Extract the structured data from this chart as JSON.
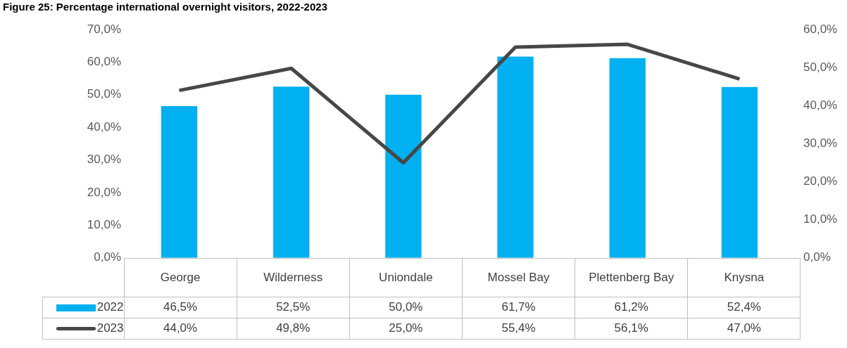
{
  "chart_data": {
    "type": "bar",
    "title": "Figure 25: Percentage international overnight visitors, 2022-2023",
    "categories": [
      "George",
      "Wilderness",
      "Uniondale",
      "Mossel Bay",
      "Plettenberg Bay",
      "Knysna"
    ],
    "series": [
      {
        "name": "2022",
        "color": "#00b0f0",
        "values": [
          46.5,
          52.5,
          50.0,
          61.7,
          61.2,
          52.4
        ],
        "value_labels": [
          "46,5%",
          "52,5%",
          "50,0%",
          "61,7%",
          "61,2%",
          "52,4%"
        ]
      },
      {
        "name": "2023",
        "type": "line",
        "axis": "y2",
        "color": "#474747",
        "values": [
          44.0,
          49.8,
          25.0,
          55.4,
          56.1,
          47.0
        ],
        "value_labels": [
          "44,0%",
          "49,8%",
          "25,0%",
          "55,4%",
          "56,1%",
          "47,0%"
        ]
      }
    ],
    "ylim": [
      0,
      70
    ],
    "yticks": [
      {
        "value": 0,
        "label": "0,0%"
      },
      {
        "value": 10,
        "label": "10,0%"
      },
      {
        "value": 20,
        "label": "20,0%"
      },
      {
        "value": 30,
        "label": "30,0%"
      },
      {
        "value": 40,
        "label": "40,0%"
      },
      {
        "value": 50,
        "label": "50,0%"
      },
      {
        "value": 60,
        "label": "60,0%"
      },
      {
        "value": 70,
        "label": "70,0%"
      }
    ],
    "y2lim": [
      0,
      60
    ],
    "y2ticks": [
      {
        "value": 0,
        "label": "0,0%"
      },
      {
        "value": 10,
        "label": "10,0%"
      },
      {
        "value": 20,
        "label": "20,0%"
      },
      {
        "value": 30,
        "label": "30,0%"
      },
      {
        "value": 40,
        "label": "40,0%"
      },
      {
        "value": 50,
        "label": "50,0%"
      },
      {
        "value": 60,
        "label": "60,0%"
      }
    ],
    "legend": "bottom",
    "marker": "none",
    "grid": false,
    "data_labels": true
  }
}
